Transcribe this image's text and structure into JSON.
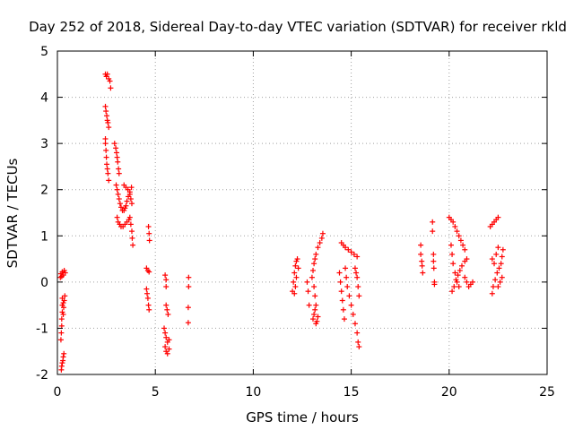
{
  "chart_data": {
    "type": "scatter",
    "title": "Day 252 of 2018, Sidereal Day-to-day VTEC variation (SDTVAR) for receiver rkld",
    "xlabel": "GPS time / hours",
    "ylabel": "SDTVAR / TECUs",
    "xlim": [
      0,
      25
    ],
    "ylim": [
      -2,
      5
    ],
    "xticks": [
      "0",
      "5",
      "10",
      "15",
      "20",
      "25"
    ],
    "yticks": [
      "-2",
      "-1",
      "0",
      "1",
      "2",
      "3",
      "4",
      "5"
    ],
    "grid": true,
    "marker": "plus",
    "color": "#ff0000",
    "series": [
      {
        "name": "SDTVAR",
        "points": [
          [
            0.2,
            -1.9
          ],
          [
            0.22,
            -1.82
          ],
          [
            0.25,
            -1.75
          ],
          [
            0.28,
            -1.7
          ],
          [
            0.3,
            -1.62
          ],
          [
            0.33,
            -1.55
          ],
          [
            0.18,
            -1.25
          ],
          [
            0.2,
            -1.1
          ],
          [
            0.22,
            -0.95
          ],
          [
            0.22,
            -0.8
          ],
          [
            0.25,
            -0.65
          ],
          [
            0.25,
            -0.5
          ],
          [
            0.3,
            -0.7
          ],
          [
            0.32,
            -0.55
          ],
          [
            0.35,
            -0.4
          ],
          [
            0.38,
            -0.3
          ],
          [
            0.25,
            -0.35
          ],
          [
            0.3,
            -0.45
          ],
          [
            0.15,
            0.1
          ],
          [
            0.18,
            0.18
          ],
          [
            0.22,
            0.12
          ],
          [
            0.25,
            0.22
          ],
          [
            0.3,
            0.15
          ],
          [
            0.35,
            0.25
          ],
          [
            0.4,
            0.2
          ],
          [
            2.45,
            4.5
          ],
          [
            2.5,
            4.45
          ],
          [
            2.55,
            4.5
          ],
          [
            2.62,
            4.4
          ],
          [
            2.68,
            4.35
          ],
          [
            2.72,
            4.2
          ],
          [
            2.45,
            3.8
          ],
          [
            2.48,
            3.7
          ],
          [
            2.52,
            3.6
          ],
          [
            2.55,
            3.5
          ],
          [
            2.58,
            3.45
          ],
          [
            2.62,
            3.35
          ],
          [
            2.45,
            3.1
          ],
          [
            2.45,
            3.0
          ],
          [
            2.48,
            2.85
          ],
          [
            2.5,
            2.7
          ],
          [
            2.52,
            2.55
          ],
          [
            2.55,
            2.45
          ],
          [
            2.58,
            2.35
          ],
          [
            2.62,
            2.2
          ],
          [
            2.92,
            3.0
          ],
          [
            2.98,
            2.9
          ],
          [
            3.02,
            2.8
          ],
          [
            3.05,
            2.7
          ],
          [
            3.08,
            2.6
          ],
          [
            3.12,
            2.45
          ],
          [
            3.15,
            2.35
          ],
          [
            3.0,
            2.1
          ],
          [
            3.05,
            2.0
          ],
          [
            3.1,
            1.9
          ],
          [
            3.15,
            1.8
          ],
          [
            3.2,
            1.7
          ],
          [
            3.25,
            1.62
          ],
          [
            3.32,
            1.55
          ],
          [
            3.4,
            1.55
          ],
          [
            3.45,
            1.6
          ],
          [
            3.5,
            1.65
          ],
          [
            3.55,
            1.75
          ],
          [
            3.62,
            1.85
          ],
          [
            3.7,
            1.95
          ],
          [
            3.78,
            2.05
          ],
          [
            3.05,
            1.4
          ],
          [
            3.1,
            1.3
          ],
          [
            3.18,
            1.25
          ],
          [
            3.25,
            1.2
          ],
          [
            3.35,
            1.2
          ],
          [
            3.45,
            1.25
          ],
          [
            3.55,
            1.3
          ],
          [
            3.65,
            1.35
          ],
          [
            3.4,
            2.1
          ],
          [
            3.5,
            2.05
          ],
          [
            3.6,
            2.0
          ],
          [
            3.7,
            1.9
          ],
          [
            3.75,
            1.8
          ],
          [
            3.8,
            1.7
          ],
          [
            3.7,
            1.4
          ],
          [
            3.75,
            1.25
          ],
          [
            3.8,
            1.1
          ],
          [
            3.82,
            0.95
          ],
          [
            3.85,
            0.8
          ],
          [
            4.65,
            1.2
          ],
          [
            4.68,
            1.05
          ],
          [
            4.7,
            0.9
          ],
          [
            4.55,
            0.3
          ],
          [
            4.62,
            0.25
          ],
          [
            4.68,
            0.22
          ],
          [
            4.55,
            -0.15
          ],
          [
            4.58,
            -0.25
          ],
          [
            4.62,
            -0.35
          ],
          [
            4.65,
            -0.5
          ],
          [
            4.68,
            -0.6
          ],
          [
            5.5,
            0.15
          ],
          [
            5.55,
            0.05
          ],
          [
            5.55,
            -0.1
          ],
          [
            5.55,
            -0.5
          ],
          [
            5.6,
            -0.6
          ],
          [
            5.65,
            -0.7
          ],
          [
            5.45,
            -1.0
          ],
          [
            5.5,
            -1.1
          ],
          [
            5.55,
            -1.2
          ],
          [
            5.62,
            -1.3
          ],
          [
            5.7,
            -1.25
          ],
          [
            5.5,
            -1.4
          ],
          [
            5.55,
            -1.5
          ],
          [
            5.62,
            -1.55
          ],
          [
            5.7,
            -1.45
          ],
          [
            6.7,
            0.1
          ],
          [
            6.7,
            -0.1
          ],
          [
            6.68,
            -0.55
          ],
          [
            6.68,
            -0.88
          ],
          [
            12.0,
            -0.2
          ],
          [
            12.05,
            0.0
          ],
          [
            12.1,
            0.2
          ],
          [
            12.15,
            0.35
          ],
          [
            12.2,
            0.45
          ],
          [
            12.25,
            0.5
          ],
          [
            12.1,
            -0.25
          ],
          [
            12.15,
            -0.1
          ],
          [
            12.2,
            0.1
          ],
          [
            12.3,
            0.3
          ],
          [
            12.75,
            0.0
          ],
          [
            12.8,
            -0.2
          ],
          [
            12.85,
            -0.5
          ],
          [
            13.05,
            -0.8
          ],
          [
            13.1,
            -0.7
          ],
          [
            13.15,
            -0.6
          ],
          [
            13.2,
            -0.5
          ],
          [
            13.15,
            -0.3
          ],
          [
            13.1,
            -0.1
          ],
          [
            13.0,
            0.1
          ],
          [
            13.05,
            0.25
          ],
          [
            13.1,
            0.4
          ],
          [
            13.15,
            0.5
          ],
          [
            13.2,
            0.6
          ],
          [
            13.3,
            0.75
          ],
          [
            13.4,
            0.85
          ],
          [
            13.5,
            0.95
          ],
          [
            13.55,
            1.05
          ],
          [
            13.2,
            -0.9
          ],
          [
            13.25,
            -0.85
          ],
          [
            13.3,
            -0.75
          ],
          [
            14.4,
            0.2
          ],
          [
            14.45,
            0.0
          ],
          [
            14.5,
            -0.2
          ],
          [
            14.55,
            -0.4
          ],
          [
            14.6,
            -0.6
          ],
          [
            14.65,
            -0.8
          ],
          [
            14.5,
            0.85
          ],
          [
            14.6,
            0.8
          ],
          [
            14.7,
            0.75
          ],
          [
            14.85,
            0.7
          ],
          [
            15.0,
            0.65
          ],
          [
            15.15,
            0.6
          ],
          [
            15.3,
            0.55
          ],
          [
            14.7,
            0.3
          ],
          [
            14.75,
            0.1
          ],
          [
            14.8,
            -0.1
          ],
          [
            14.9,
            -0.3
          ],
          [
            15.0,
            -0.5
          ],
          [
            15.1,
            -0.7
          ],
          [
            15.2,
            -0.9
          ],
          [
            15.3,
            -1.1
          ],
          [
            15.35,
            -1.3
          ],
          [
            15.4,
            -1.4
          ],
          [
            15.2,
            0.3
          ],
          [
            15.25,
            0.2
          ],
          [
            15.3,
            0.1
          ],
          [
            15.35,
            -0.1
          ],
          [
            15.4,
            -0.3
          ],
          [
            18.55,
            0.8
          ],
          [
            18.55,
            0.6
          ],
          [
            18.6,
            0.45
          ],
          [
            18.62,
            0.35
          ],
          [
            18.65,
            0.2
          ],
          [
            19.15,
            1.3
          ],
          [
            19.15,
            1.1
          ],
          [
            19.2,
            0.6
          ],
          [
            19.2,
            0.45
          ],
          [
            19.22,
            0.3
          ],
          [
            19.25,
            0.0
          ],
          [
            19.25,
            -0.05
          ],
          [
            20.0,
            1.4
          ],
          [
            20.1,
            1.35
          ],
          [
            20.2,
            1.3
          ],
          [
            20.3,
            1.2
          ],
          [
            20.4,
            1.1
          ],
          [
            20.5,
            1.0
          ],
          [
            20.6,
            0.9
          ],
          [
            20.7,
            0.8
          ],
          [
            20.8,
            0.7
          ],
          [
            20.1,
            0.8
          ],
          [
            20.15,
            0.6
          ],
          [
            20.2,
            0.4
          ],
          [
            20.3,
            0.2
          ],
          [
            20.4,
            0.0
          ],
          [
            20.5,
            -0.1
          ],
          [
            20.15,
            -0.2
          ],
          [
            20.25,
            -0.1
          ],
          [
            20.35,
            0.05
          ],
          [
            20.45,
            0.15
          ],
          [
            20.55,
            0.25
          ],
          [
            20.65,
            0.35
          ],
          [
            20.8,
            0.45
          ],
          [
            20.9,
            0.5
          ],
          [
            20.8,
            0.1
          ],
          [
            20.9,
            0.0
          ],
          [
            21.0,
            -0.1
          ],
          [
            21.1,
            -0.05
          ],
          [
            21.2,
            0.0
          ],
          [
            22.1,
            1.2
          ],
          [
            22.2,
            1.25
          ],
          [
            22.3,
            1.3
          ],
          [
            22.4,
            1.35
          ],
          [
            22.5,
            1.4
          ],
          [
            22.2,
            0.5
          ],
          [
            22.3,
            0.4
          ],
          [
            22.4,
            0.6
          ],
          [
            22.5,
            0.75
          ],
          [
            22.2,
            -0.25
          ],
          [
            22.25,
            -0.1
          ],
          [
            22.35,
            0.05
          ],
          [
            22.45,
            0.2
          ],
          [
            22.55,
            0.3
          ],
          [
            22.65,
            0.4
          ],
          [
            22.7,
            0.55
          ],
          [
            22.75,
            0.7
          ],
          [
            22.5,
            -0.1
          ],
          [
            22.6,
            0.0
          ],
          [
            22.7,
            0.1
          ]
        ]
      }
    ]
  }
}
